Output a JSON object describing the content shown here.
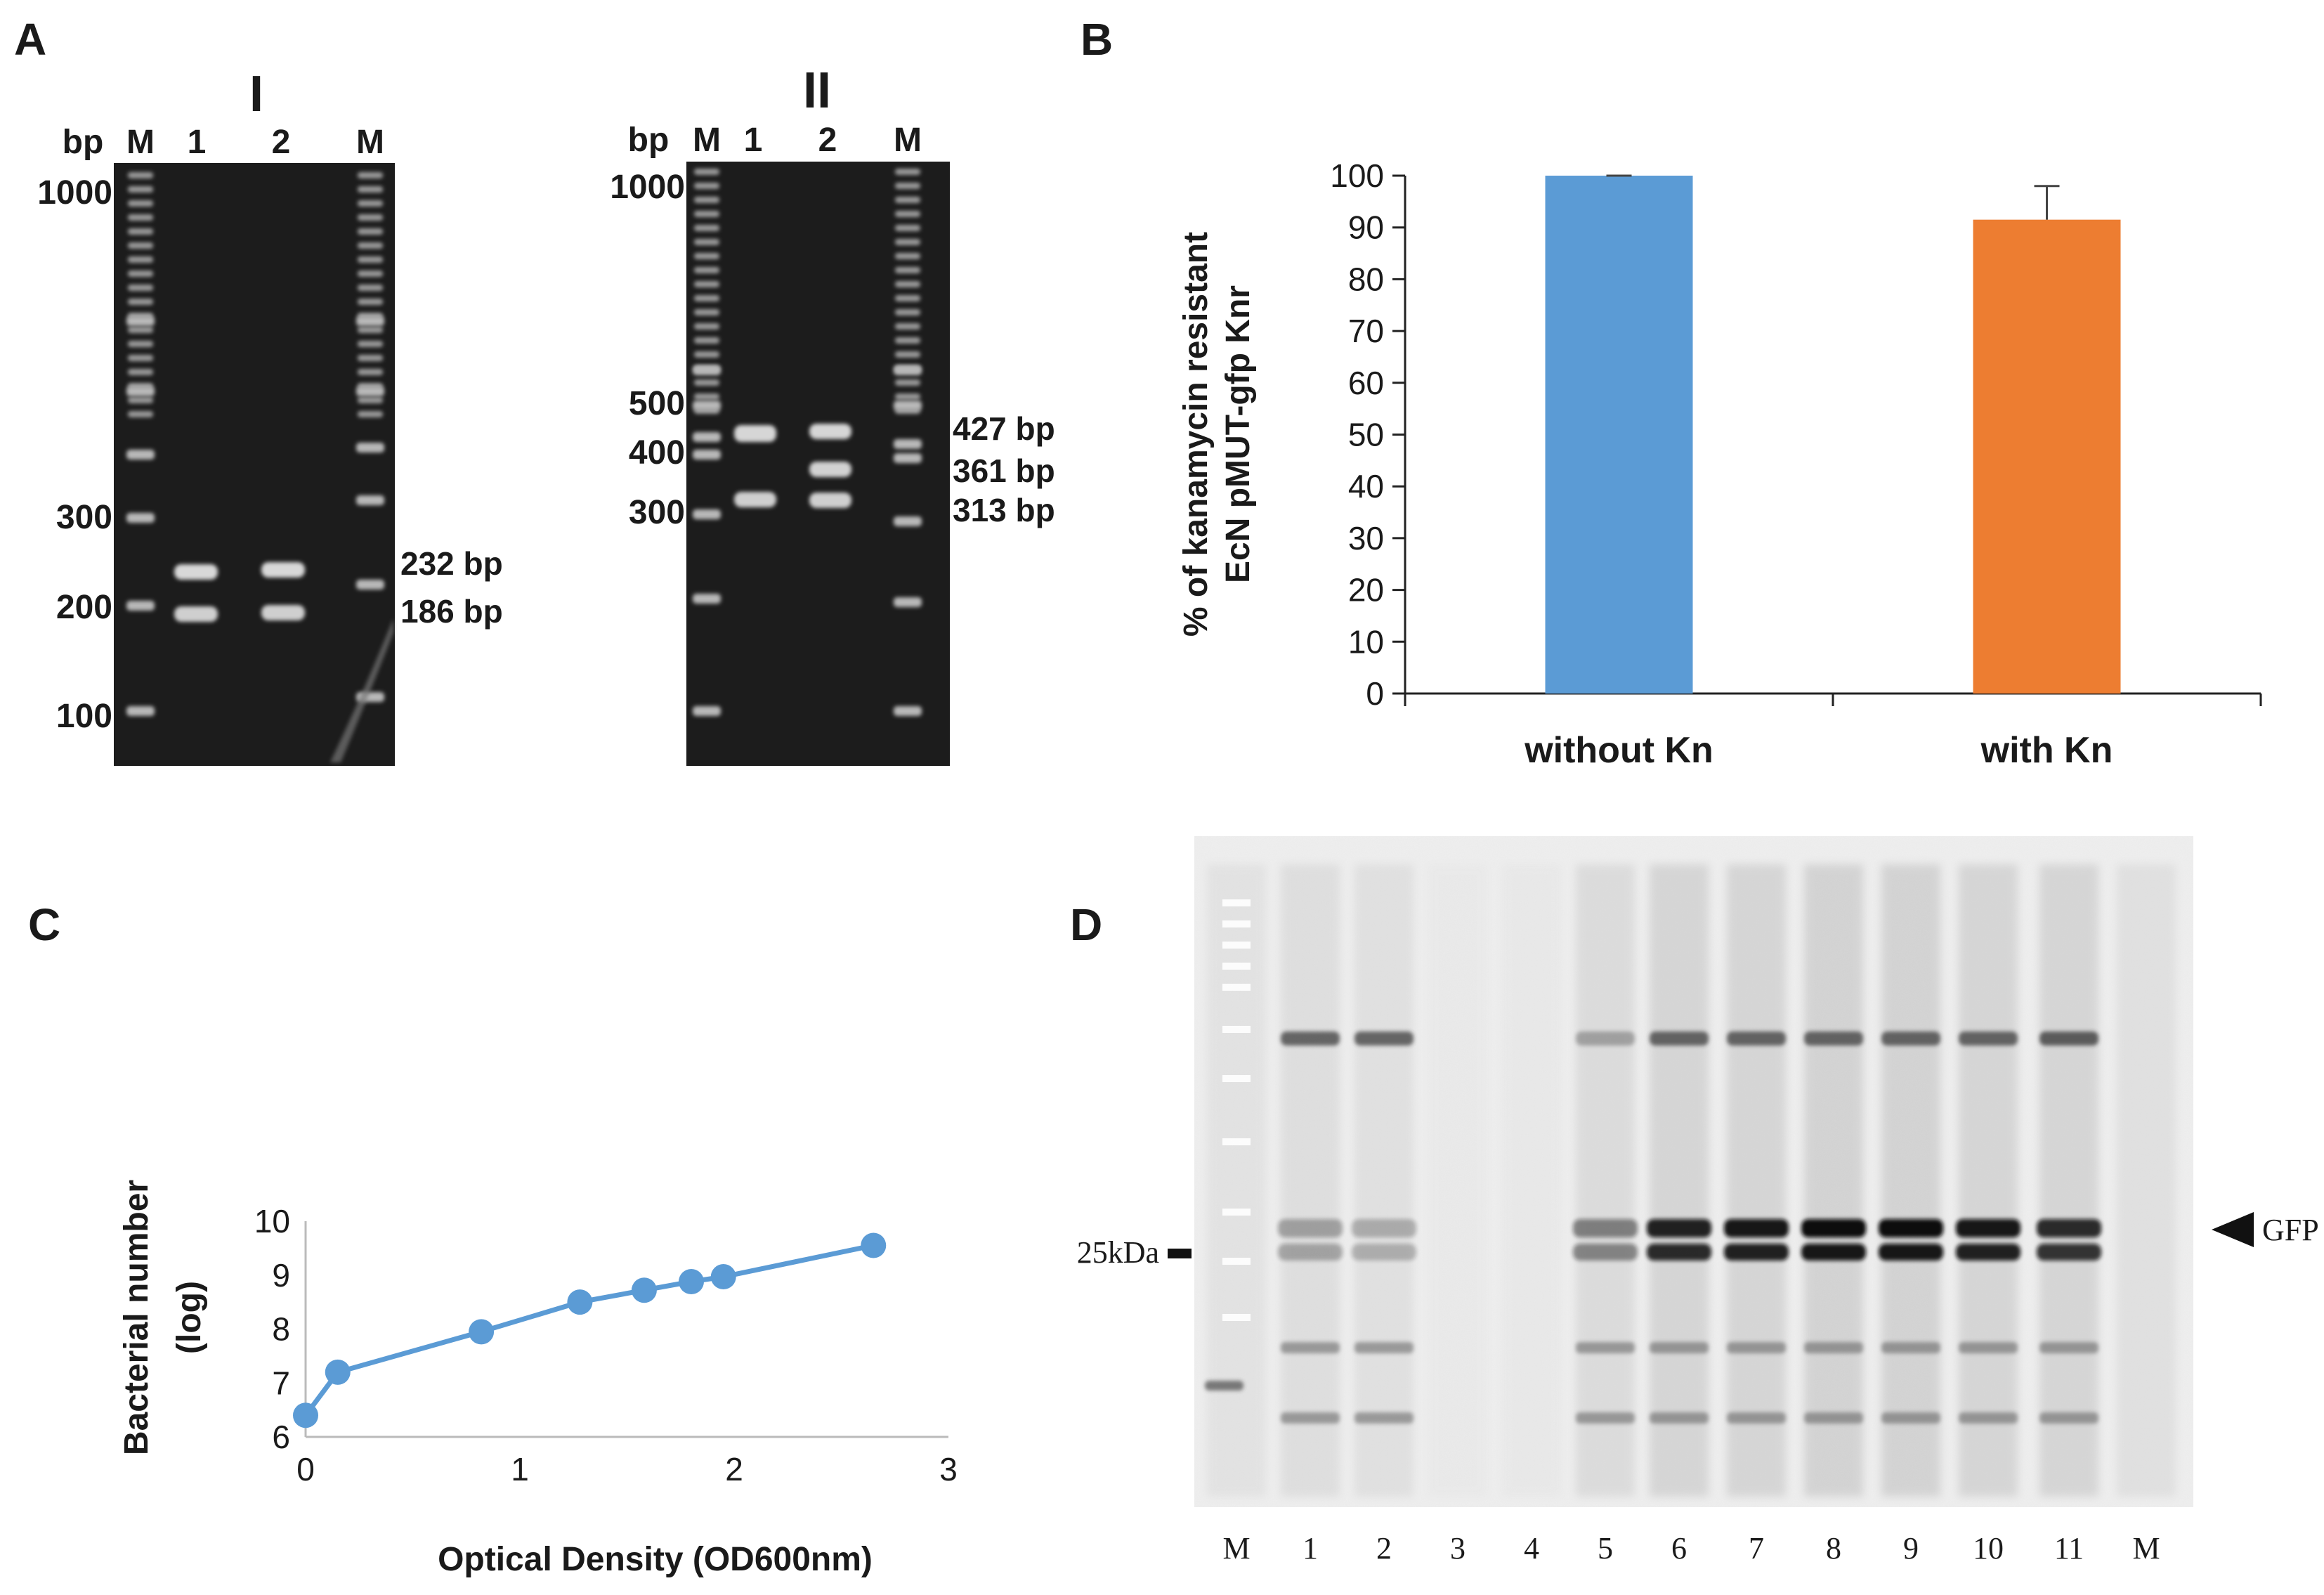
{
  "panels": {
    "A": {
      "label": "A",
      "gel_I": {
        "title": "I",
        "bp_label": "bp",
        "lanes": [
          "M",
          "1",
          "2",
          "M"
        ],
        "markers": [
          "1000",
          "300",
          "200",
          "100"
        ],
        "band_sizes": [
          "232 bp",
          "186 bp"
        ]
      },
      "gel_II": {
        "title": "II",
        "bp_label": "bp",
        "lanes": [
          "M",
          "1",
          "2",
          "M"
        ],
        "markers": [
          "1000",
          "500",
          "400",
          "300"
        ],
        "band_sizes": [
          "427 bp",
          "361 bp",
          "313 bp"
        ]
      }
    },
    "B": {
      "label": "B"
    },
    "C": {
      "label": "C"
    },
    "D": {
      "label": "D",
      "lanes": [
        "M",
        "1",
        "2",
        "3",
        "4",
        "5",
        "6",
        "7",
        "8",
        "9",
        "10",
        "11",
        "M"
      ],
      "marker_label": "25kDa",
      "gfp_label": "GFP"
    }
  },
  "chart_data": [
    {
      "id": "B",
      "type": "bar",
      "categories": [
        "without Kn",
        "with Kn"
      ],
      "values": [
        100,
        91.5
      ],
      "error": [
        0,
        6.5
      ],
      "colors": [
        "#5b9bd5",
        "#ed7d31"
      ],
      "ylabel_line1": "% of kanamycin resistant",
      "ylabel_line2": "EcN pMUT-gfp Knr",
      "ylim": [
        0,
        100
      ],
      "yticks": [
        "0",
        "10",
        "20",
        "30",
        "40",
        "50",
        "60",
        "70",
        "80",
        "90",
        "100"
      ]
    },
    {
      "id": "C",
      "type": "line",
      "x": [
        0,
        0.15,
        0.82,
        1.28,
        1.58,
        1.8,
        1.95,
        2.65
      ],
      "y": [
        6.4,
        7.2,
        7.95,
        8.5,
        8.72,
        8.88,
        8.97,
        9.55
      ],
      "color": "#5b9bd5",
      "xlabel": "Optical Density (OD600nm)",
      "ylabel_line1": "Bacterial number",
      "ylabel_line2": "(log)",
      "xlim": [
        0,
        3
      ],
      "ylim": [
        6,
        10
      ],
      "xticks": [
        "0",
        "1",
        "2",
        "3"
      ],
      "yticks": [
        "6",
        "7",
        "8",
        "9",
        "10"
      ]
    }
  ]
}
